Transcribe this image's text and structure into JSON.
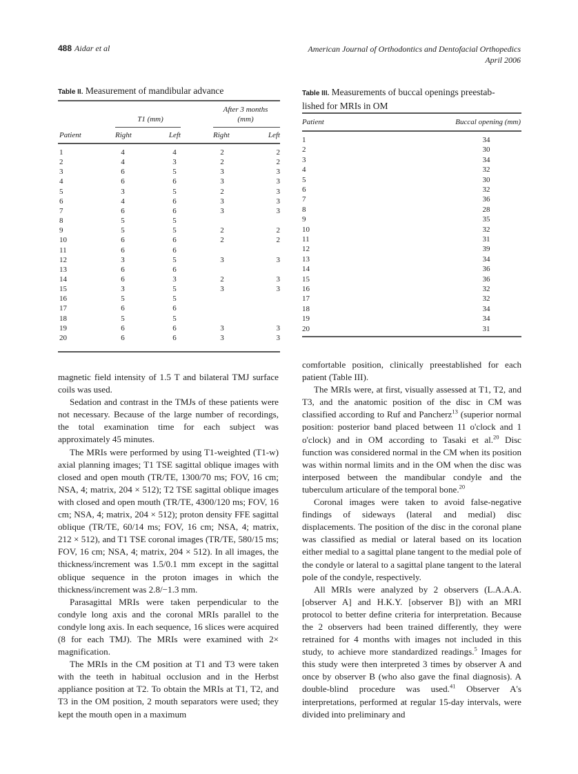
{
  "header": {
    "page_number": "488",
    "authors": "Aidar et al",
    "journal": "American Journal of Orthodontics and Dentofacial Orthopedics",
    "date": "April 2006"
  },
  "table2": {
    "label": "Table II.",
    "title": "Measurement of mandibular advance",
    "group1": "T1 (mm)",
    "group2_line1": "After 3 months",
    "group2_line2": "(mm)",
    "col_patient": "Patient",
    "col_right": "Right",
    "col_left": "Left",
    "rows": [
      [
        "1",
        "4",
        "4",
        "2",
        "2"
      ],
      [
        "2",
        "4",
        "3",
        "2",
        "2"
      ],
      [
        "3",
        "6",
        "5",
        "3",
        "3"
      ],
      [
        "4",
        "6",
        "6",
        "3",
        "3"
      ],
      [
        "5",
        "3",
        "5",
        "2",
        "3"
      ],
      [
        "6",
        "4",
        "6",
        "3",
        "3"
      ],
      [
        "7",
        "6",
        "6",
        "3",
        "3"
      ],
      [
        "8",
        "5",
        "5",
        "",
        ""
      ],
      [
        "9",
        "5",
        "5",
        "2",
        "2"
      ],
      [
        "10",
        "6",
        "6",
        "2",
        "2"
      ],
      [
        "11",
        "6",
        "6",
        "",
        ""
      ],
      [
        "12",
        "3",
        "5",
        "3",
        "3"
      ],
      [
        "13",
        "6",
        "6",
        "",
        ""
      ],
      [
        "14",
        "6",
        "3",
        "2",
        "3"
      ],
      [
        "15",
        "3",
        "5",
        "3",
        "3"
      ],
      [
        "16",
        "5",
        "5",
        "",
        ""
      ],
      [
        "17",
        "6",
        "6",
        "",
        ""
      ],
      [
        "18",
        "5",
        "5",
        "",
        ""
      ],
      [
        "19",
        "6",
        "6",
        "3",
        "3"
      ],
      [
        "20",
        "6",
        "6",
        "3",
        "3"
      ]
    ]
  },
  "table3": {
    "label": "Table III.",
    "title_line1": "Measurements of buccal openings preestab-",
    "title_line2": "lished for MRIs in OM",
    "col_patient": "Patient",
    "col_value": "Buccal opening (mm)",
    "rows": [
      [
        "1",
        "34"
      ],
      [
        "2",
        "30"
      ],
      [
        "3",
        "34"
      ],
      [
        "4",
        "32"
      ],
      [
        "5",
        "30"
      ],
      [
        "6",
        "32"
      ],
      [
        "7",
        "36"
      ],
      [
        "8",
        "28"
      ],
      [
        "9",
        "35"
      ],
      [
        "10",
        "32"
      ],
      [
        "11",
        "31"
      ],
      [
        "12",
        "39"
      ],
      [
        "13",
        "34"
      ],
      [
        "14",
        "36"
      ],
      [
        "15",
        "36"
      ],
      [
        "16",
        "32"
      ],
      [
        "17",
        "32"
      ],
      [
        "18",
        "34"
      ],
      [
        "19",
        "34"
      ],
      [
        "20",
        "31"
      ]
    ]
  },
  "left_column": [
    {
      "indent": false,
      "segments": [
        {
          "t": "magnetic field intensity of 1.5 T and bilateral TMJ surface coils was used."
        }
      ]
    },
    {
      "indent": true,
      "segments": [
        {
          "t": "Sedation and contrast in the TMJs of these patients were not necessary. Because of the large number of recordings, the total examination time for each subject was approximately 45 minutes."
        }
      ]
    },
    {
      "indent": true,
      "segments": [
        {
          "t": "The MRIs were performed by using T1-weighted (T1-w) axial planning images; T1 TSE sagittal oblique images with closed and open mouth (TR/TE, 1300/70 ms; FOV, 16 cm; NSA, 4; matrix, 204 × 512); T2 TSE sagittal oblique images with closed and open mouth (TR/TE, 4300/120 ms; FOV, 16 cm; NSA, 4; matrix, 204 × 512); proton density FFE sagittal oblique (TR/TE, 60/14 ms; FOV, 16 cm; NSA, 4; matrix, 212 × 512), and T1 TSE coronal images (TR/TE, 580/15 ms; FOV, 16 cm; NSA, 4; matrix, 204 × 512). In all images, the thickness/increment was 1.5/0.1 mm except in the sagittal oblique sequence in the proton images in which the thickness/increment was 2.8/−1.3 mm."
        }
      ]
    },
    {
      "indent": true,
      "segments": [
        {
          "t": "Parasagittal MRIs were taken perpendicular to the condyle long axis and the coronal MRIs parallel to the condyle long axis. In each sequence, 16 slices were acquired (8 for each TMJ). The MRIs were examined with 2× magnification."
        }
      ]
    },
    {
      "indent": true,
      "segments": [
        {
          "t": "The MRIs in the CM position at T1 and T3 were taken with the teeth in habitual occlusion and in the Herbst appliance position at T2. To obtain the MRIs at T1, T2, and T3 in the OM position, 2 mouth separators were used; they kept the mouth open in a maximum"
        }
      ]
    }
  ],
  "right_column": [
    {
      "indent": false,
      "segments": [
        {
          "t": "comfortable position, clinically preestablished for each patient (Table III)."
        }
      ]
    },
    {
      "indent": true,
      "segments": [
        {
          "t": "The MRIs were, at first, visually assessed at T1, T2, and T3, and the anatomic position of the disc in CM was classified according to Ruf and Pancherz"
        },
        {
          "t": "13",
          "sup": true
        },
        {
          "t": " (superior normal position: posterior band placed between 11 o'clock and 1 o'clock) and in OM according to Tasaki et al."
        },
        {
          "t": "20",
          "sup": true
        },
        {
          "t": " Disc function was considered normal in the CM when its position was within normal limits and in the OM when the disc was interposed between the mandibular condyle and the tuberculum articulare of the temporal bone."
        },
        {
          "t": "20",
          "sup": true
        }
      ]
    },
    {
      "indent": true,
      "segments": [
        {
          "t": "Coronal images were taken to avoid false-negative findings of sideways (lateral and medial) disc displacements. The position of the disc in the coronal plane was classified as medial or lateral based on its location either medial to a sagittal plane tangent to the medial pole of the condyle or lateral to a sagittal plane tangent to the lateral pole of the condyle, respectively."
        }
      ]
    },
    {
      "indent": true,
      "segments": [
        {
          "t": "All MRIs were analyzed by 2 observers (L.A.A.A. [observer A] and H.K.Y. [observer B]) with an MRI protocol to better define criteria for interpretation. Because the 2 observers had been trained differently, they were retrained for 4 months with images not included in this study, to achieve more standardized readings."
        },
        {
          "t": "5",
          "sup": true
        },
        {
          "t": " Images for this study were then interpreted 3 times by observer A and once by observer B (who also gave the final diagnosis). A double-blind procedure was used."
        },
        {
          "t": "41",
          "sup": true
        },
        {
          "t": " Observer A's interpretations, performed at regular 15-day intervals, were divided into preliminary and"
        }
      ]
    }
  ]
}
